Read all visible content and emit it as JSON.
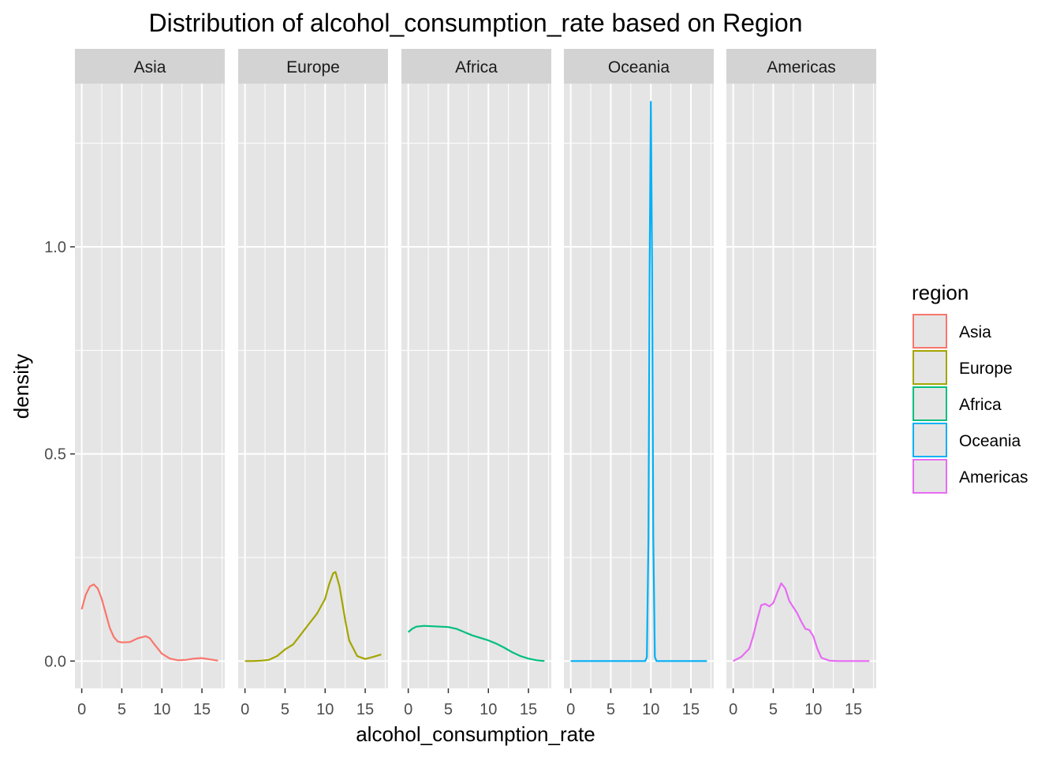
{
  "chart_data": {
    "type": "line",
    "title": "Distribution of alcohol_consumption_rate based on Region",
    "xlabel": "alcohol_consumption_rate",
    "ylabel": "density",
    "xlim": [
      -0.85,
      17.85
    ],
    "ylim": [
      -0.066,
      1.394
    ],
    "x_ticks": [
      0,
      5,
      10,
      15
    ],
    "x_tick_labels": [
      "0",
      "5",
      "10",
      "15"
    ],
    "y_ticks": [
      0,
      0.5,
      1
    ],
    "y_tick_labels": [
      "0.0",
      "0.5",
      "1.0"
    ],
    "y_minor_ticks": [
      0.25,
      0.75,
      1.25
    ],
    "grid": true,
    "panel_background": "#e5e5e5",
    "grid_color": "#ffffff",
    "strip_background": "#d3d3d3",
    "legend": {
      "title": "region",
      "position": "right"
    },
    "series": [
      {
        "name": "Asia",
        "color": "#f8766d",
        "points": [
          [
            0,
            0.125
          ],
          [
            0.5,
            0.16
          ],
          [
            1,
            0.18
          ],
          [
            1.5,
            0.185
          ],
          [
            2,
            0.175
          ],
          [
            2.5,
            0.15
          ],
          [
            3,
            0.115
          ],
          [
            3.5,
            0.08
          ],
          [
            4,
            0.058
          ],
          [
            4.5,
            0.047
          ],
          [
            5,
            0.045
          ],
          [
            6,
            0.046
          ],
          [
            7,
            0.055
          ],
          [
            8,
            0.06
          ],
          [
            8.5,
            0.055
          ],
          [
            9,
            0.042
          ],
          [
            10,
            0.018
          ],
          [
            11,
            0.006
          ],
          [
            12,
            0.002
          ],
          [
            13,
            0.003
          ],
          [
            14,
            0.006
          ],
          [
            15,
            0.007
          ],
          [
            16,
            0.004
          ],
          [
            17,
            0.001
          ]
        ]
      },
      {
        "name": "Europe",
        "color": "#a3a500",
        "points": [
          [
            0,
            0
          ],
          [
            1,
            0
          ],
          [
            2,
            0.001
          ],
          [
            3,
            0.003
          ],
          [
            4,
            0.012
          ],
          [
            5,
            0.028
          ],
          [
            6,
            0.04
          ],
          [
            7,
            0.065
          ],
          [
            8,
            0.09
          ],
          [
            9,
            0.115
          ],
          [
            10,
            0.15
          ],
          [
            10.5,
            0.185
          ],
          [
            11,
            0.212
          ],
          [
            11.3,
            0.215
          ],
          [
            11.8,
            0.18
          ],
          [
            12.5,
            0.1
          ],
          [
            13,
            0.05
          ],
          [
            14,
            0.012
          ],
          [
            15,
            0.005
          ],
          [
            16,
            0.01
          ],
          [
            17,
            0.016
          ]
        ]
      },
      {
        "name": "Africa",
        "color": "#00bf7d",
        "points": [
          [
            0,
            0.07
          ],
          [
            0.5,
            0.078
          ],
          [
            1,
            0.083
          ],
          [
            2,
            0.085
          ],
          [
            3,
            0.084
          ],
          [
            4,
            0.083
          ],
          [
            5,
            0.082
          ],
          [
            6,
            0.078
          ],
          [
            7,
            0.07
          ],
          [
            8,
            0.062
          ],
          [
            9,
            0.056
          ],
          [
            10,
            0.05
          ],
          [
            11,
            0.042
          ],
          [
            12,
            0.032
          ],
          [
            13,
            0.021
          ],
          [
            14,
            0.012
          ],
          [
            15,
            0.006
          ],
          [
            16,
            0.002
          ],
          [
            17,
            0
          ]
        ]
      },
      {
        "name": "Oceania",
        "color": "#00b0f6",
        "points": [
          [
            0,
            0
          ],
          [
            9.3,
            0
          ],
          [
            9.5,
            0.01
          ],
          [
            9.7,
            0.3
          ],
          [
            9.85,
            0.95
          ],
          [
            10,
            1.35
          ],
          [
            10.15,
            0.95
          ],
          [
            10.3,
            0.3
          ],
          [
            10.5,
            0.01
          ],
          [
            10.7,
            0
          ],
          [
            17,
            0
          ]
        ]
      },
      {
        "name": "Americas",
        "color": "#e76bf3",
        "points": [
          [
            0,
            0
          ],
          [
            1,
            0.01
          ],
          [
            2,
            0.03
          ],
          [
            2.5,
            0.06
          ],
          [
            3,
            0.1
          ],
          [
            3.5,
            0.135
          ],
          [
            4,
            0.138
          ],
          [
            4.5,
            0.132
          ],
          [
            5,
            0.14
          ],
          [
            5.5,
            0.165
          ],
          [
            6,
            0.188
          ],
          [
            6.5,
            0.175
          ],
          [
            7,
            0.145
          ],
          [
            8,
            0.115
          ],
          [
            8.5,
            0.095
          ],
          [
            9,
            0.078
          ],
          [
            9.5,
            0.075
          ],
          [
            10,
            0.06
          ],
          [
            10.5,
            0.03
          ],
          [
            11,
            0.008
          ],
          [
            12,
            0.001
          ],
          [
            13,
            0
          ],
          [
            17,
            0
          ]
        ]
      }
    ]
  }
}
